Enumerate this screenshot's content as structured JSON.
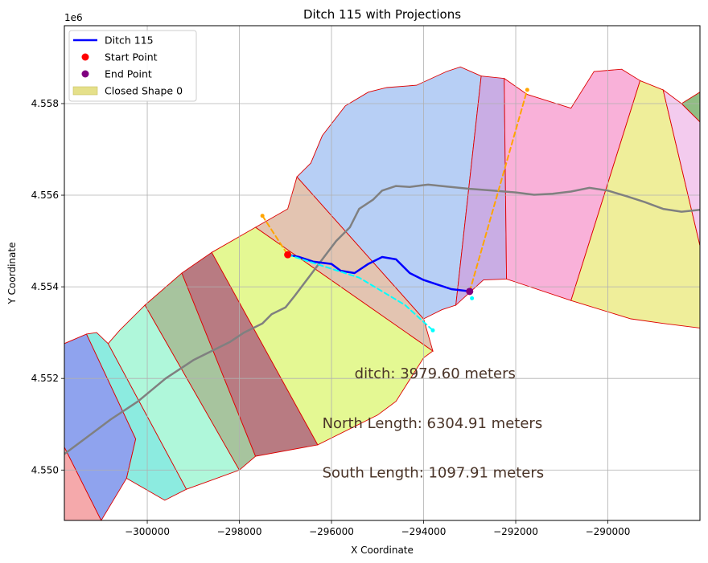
{
  "chart_data": {
    "type": "line",
    "title": "Ditch 115 with Projections",
    "xlabel": "X Coordinate",
    "ylabel": "Y Coordinate",
    "y_offset_label": "1e6",
    "xlim": [
      -301800,
      -288000
    ],
    "ylim": [
      4548900,
      4559700
    ],
    "grid": true,
    "legend_placement": "upper-left",
    "x_ticks": [
      -300000,
      -298000,
      -296000,
      -294000,
      -292000,
      -290000
    ],
    "x_tick_labels": [
      "−300000",
      "−298000",
      "−296000",
      "−294000",
      "−292000",
      "−290000"
    ],
    "y_ticks": [
      4550000,
      4552000,
      4554000,
      4556000,
      4558000
    ],
    "y_tick_labels": [
      "4.550",
      "4.552",
      "4.554",
      "4.556",
      "4.558"
    ],
    "legend": [
      {
        "label": "Ditch 115",
        "kind": "line",
        "color": "#0000ff"
      },
      {
        "label": "Start Point",
        "kind": "marker",
        "color": "#ff0000"
      },
      {
        "label": "End Point",
        "kind": "marker",
        "color": "#800080"
      },
      {
        "label": "Closed Shape 0",
        "kind": "patch",
        "color": "#e5e08a"
      }
    ],
    "annotations": [
      {
        "text": "ditch: 3979.60 meters",
        "x": -295500,
        "y": 4552000
      },
      {
        "text": "North Length: 6304.91 meters",
        "x": -296200,
        "y": 4550920
      },
      {
        "text": "South Length: 1097.91 meters",
        "x": -296200,
        "y": 4549840
      }
    ],
    "polygons": [
      {
        "name": "red-patch",
        "color": "#f5a9ab",
        "stroke": "#dd0000",
        "points": [
          [
            -301800,
            4550500
          ],
          [
            -301000,
            4548900
          ],
          [
            -301800,
            4548900
          ]
        ]
      },
      {
        "name": "blue-patch",
        "color": "#8fa3ee",
        "stroke": "#dd0000",
        "points": [
          [
            -301800,
            4552760
          ],
          [
            -301320,
            4552970
          ],
          [
            -300250,
            4550680
          ],
          [
            -300450,
            4549820
          ],
          [
            -301000,
            4548900
          ],
          [
            -301800,
            4550500
          ]
        ]
      },
      {
        "name": "cyan-patch",
        "color": "#8cebe0",
        "stroke": "#dd0000",
        "points": [
          [
            -301320,
            4552970
          ],
          [
            -301100,
            4553000
          ],
          [
            -300850,
            4552760
          ],
          [
            -299150,
            4549580
          ],
          [
            -299620,
            4549340
          ],
          [
            -300450,
            4549820
          ],
          [
            -300250,
            4550680
          ]
        ]
      },
      {
        "name": "mint-patch",
        "color": "#aff7da",
        "stroke": "#dd0000",
        "points": [
          [
            -300850,
            4552760
          ],
          [
            -300600,
            4553050
          ],
          [
            -300050,
            4553600
          ],
          [
            -298000,
            4550000
          ],
          [
            -299150,
            4549580
          ]
        ]
      },
      {
        "name": "sage-patch",
        "color": "#a7c49e",
        "stroke": "#dd0000",
        "points": [
          [
            -300050,
            4553600
          ],
          [
            -299250,
            4554300
          ],
          [
            -297650,
            4550300
          ],
          [
            -298000,
            4550000
          ]
        ]
      },
      {
        "name": "maroon-patch",
        "color": "#b87b82",
        "stroke": "#dd0000",
        "points": [
          [
            -299250,
            4554300
          ],
          [
            -298600,
            4554750
          ],
          [
            -296300,
            4550550
          ],
          [
            -297650,
            4550300
          ]
        ]
      },
      {
        "name": "lime-patch",
        "color": "#e4f893",
        "stroke": "#dd0000",
        "points": [
          [
            -298600,
            4554750
          ],
          [
            -297650,
            4555300
          ],
          [
            -293800,
            4552600
          ],
          [
            -294000,
            4552450
          ],
          [
            -294600,
            4551500
          ],
          [
            -295000,
            4551200
          ],
          [
            -296300,
            4550550
          ]
        ]
      },
      {
        "name": "tan-patch",
        "color": "#e3c4b1",
        "stroke": "#dd0000",
        "points": [
          [
            -297650,
            4555300
          ],
          [
            -296950,
            4555700
          ],
          [
            -296750,
            4556400
          ],
          [
            -294000,
            4553300
          ],
          [
            -293800,
            4552600
          ]
        ]
      },
      {
        "name": "lightblue-patch",
        "color": "#b7cff5",
        "stroke": "#dd0000",
        "points": [
          [
            -296750,
            4556400
          ],
          [
            -296450,
            4556700
          ],
          [
            -296200,
            4557300
          ],
          [
            -295700,
            4557950
          ],
          [
            -295200,
            4558250
          ],
          [
            -294800,
            4558350
          ],
          [
            -294150,
            4558400
          ],
          [
            -293500,
            4558700
          ],
          [
            -293200,
            4558800
          ],
          [
            -292750,
            4558600
          ],
          [
            -293300,
            4553600
          ],
          [
            -293600,
            4553500
          ],
          [
            -294000,
            4553300
          ]
        ]
      },
      {
        "name": "lavender-patch",
        "color": "#c9ade4",
        "stroke": "#dd0000",
        "points": [
          [
            -292750,
            4558600
          ],
          [
            -292250,
            4558550
          ],
          [
            -292200,
            4554170
          ],
          [
            -292700,
            4554150
          ],
          [
            -293300,
            4553600
          ]
        ]
      },
      {
        "name": "pink-patch",
        "color": "#f9b1d9",
        "stroke": "#dd0000",
        "points": [
          [
            -292250,
            4558550
          ],
          [
            -291750,
            4558200
          ],
          [
            -290800,
            4557900
          ],
          [
            -290300,
            4558700
          ],
          [
            -289700,
            4558750
          ],
          [
            -289300,
            4558500
          ],
          [
            -290800,
            4553700
          ],
          [
            -292200,
            4554170
          ]
        ]
      },
      {
        "name": "yellow-patch",
        "color": "#efee9a",
        "stroke": "#dd0000",
        "points": [
          [
            -289300,
            4558500
          ],
          [
            -288800,
            4558300
          ],
          [
            -288000,
            4554900
          ],
          [
            -288000,
            4553100
          ],
          [
            -288800,
            4553200
          ],
          [
            -289500,
            4553300
          ],
          [
            -290800,
            4553700
          ]
        ]
      },
      {
        "name": "lightpink-patch",
        "color": "#f3cbee",
        "stroke": "#dd0000",
        "points": [
          [
            -288800,
            4558300
          ],
          [
            -288400,
            4558000
          ],
          [
            -288000,
            4557600
          ],
          [
            -288000,
            4554900
          ]
        ]
      },
      {
        "name": "green-patch",
        "color": "#8fbd83",
        "stroke": "#dd0000",
        "points": [
          [
            -288400,
            4558000
          ],
          [
            -288000,
            4558250
          ],
          [
            -288000,
            4557600
          ]
        ]
      }
    ],
    "series": [
      {
        "name": "river-centerline",
        "color": "#808080",
        "width": 2.5,
        "dash": "",
        "x": [
          -301800,
          -301400,
          -300800,
          -300200,
          -299600,
          -299000,
          -298600,
          -298200,
          -297900,
          -297500,
          -297300,
          -297000,
          -296800,
          -296500,
          -296200,
          -295900,
          -295600,
          -295400,
          -295100,
          -294900,
          -294600,
          -294300,
          -294000,
          -293900,
          -293500,
          -293000,
          -292500,
          -292000,
          -291600,
          -291200,
          -290800,
          -290400,
          -290000,
          -289600,
          -289200,
          -288800,
          -288400,
          -288000
        ],
        "y": [
          4550350,
          4550650,
          4551100,
          4551500,
          4552000,
          4552400,
          4552600,
          4552800,
          4553000,
          4553200,
          4553400,
          4553550,
          4553800,
          4554200,
          4554600,
          4555000,
          4555300,
          4555700,
          4555900,
          4556100,
          4556200,
          4556180,
          4556220,
          4556230,
          4556190,
          4556140,
          4556100,
          4556060,
          4556010,
          4556030,
          4556080,
          4556160,
          4556100,
          4555980,
          4555850,
          4555700,
          4555640,
          4555680
        ]
      },
      {
        "name": "Ditch 115",
        "color": "#0000ff",
        "width": 2.5,
        "dash": "",
        "x": [
          -296950,
          -296700,
          -296400,
          -296000,
          -295800,
          -295500,
          -295200,
          -294900,
          -294600,
          -294300,
          -294000,
          -293700,
          -293400,
          -293000
        ],
        "y": [
          4554700,
          4554650,
          4554550,
          4554500,
          4554350,
          4554300,
          4554500,
          4554650,
          4554600,
          4554300,
          4554150,
          4554050,
          4553950,
          4553900
        ]
      },
      {
        "name": "south-projection",
        "color": "#00ffff",
        "width": 2,
        "dash": "6,4",
        "x": [
          -296950,
          -295400,
          -294400,
          -293800
        ],
        "y": [
          4554700,
          4554200,
          4553600,
          4553050
        ]
      },
      {
        "name": "north-start-projection",
        "color": "#ffa500",
        "width": 2,
        "dash": "6,4",
        "x": [
          -297500,
          -296950
        ],
        "y": [
          4555550,
          4554700
        ]
      },
      {
        "name": "north-end-projection",
        "color": "#ffa500",
        "width": 2,
        "dash": "6,4",
        "x": [
          -293000,
          -291750
        ],
        "y": [
          4553900,
          4558300
        ]
      }
    ],
    "points": [
      {
        "name": "Start Point",
        "x": -296950,
        "y": 4554700,
        "color": "#ff0000",
        "r": 4.5
      },
      {
        "name": "End Point",
        "x": -293000,
        "y": 4553900,
        "color": "#800080",
        "r": 4.5
      },
      {
        "name": "north-start-endpoint",
        "x": -297500,
        "y": 4555550,
        "color": "#ffa500",
        "r": 2.5
      },
      {
        "name": "north-end-endpoint",
        "x": -291750,
        "y": 4558300,
        "color": "#ffa500",
        "r": 2.5
      },
      {
        "name": "south-endpoint",
        "x": -293800,
        "y": 4553050,
        "color": "#00ffff",
        "r": 2.5
      },
      {
        "name": "end-projection-endpoint",
        "x": -292950,
        "y": 4553750,
        "color": "#00ffff",
        "r": 2.5
      }
    ]
  }
}
